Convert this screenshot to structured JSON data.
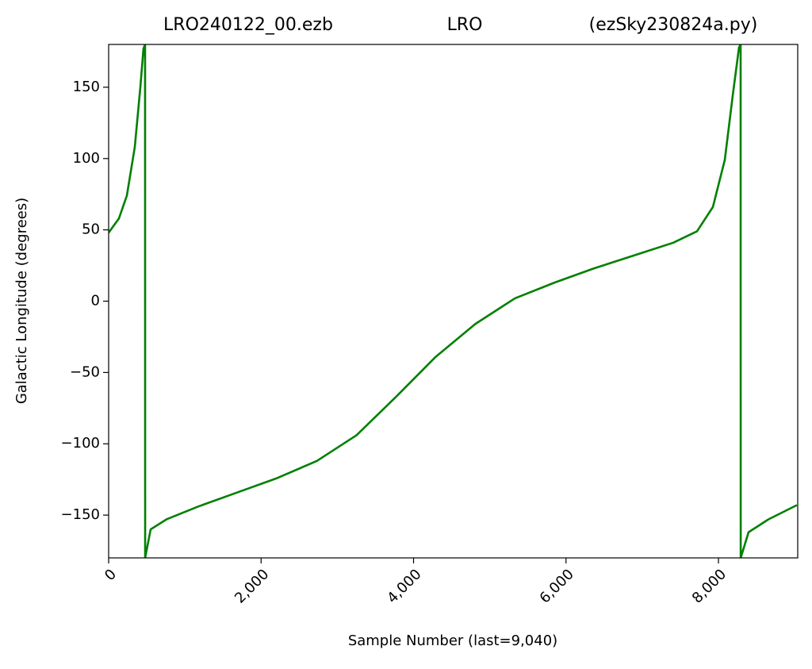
{
  "chart_data": {
    "type": "line",
    "title": [
      "LRO240122_00.ezb",
      "LRO",
      "(ezSky230824a.py)"
    ],
    "x_label": "Sample Number (last=9,040)",
    "y_label": "Galactic Longitude (degrees)",
    "xlim": [
      0,
      9040
    ],
    "ylim": [
      -180,
      180
    ],
    "xticks": [
      0,
      {
        "value": 2000,
        "label": "2,000"
      },
      {
        "value": 4000,
        "label": "4,000"
      },
      {
        "value": 6000,
        "label": "6,000"
      },
      {
        "value": 8000,
        "label": "8,000"
      }
    ],
    "yticks": [
      {
        "value": -150,
        "label": "−150"
      },
      {
        "value": -100,
        "label": "−100"
      },
      {
        "value": -50,
        "label": "−50"
      },
      0,
      50,
      100,
      150
    ],
    "grid": false,
    "series": [
      {
        "color": "#008000",
        "x": [
          0,
          135,
          239,
          343,
          416,
          457,
          478,
          479,
          551,
          758,
          1174,
          1694,
          2213,
          2732,
          3252,
          3771,
          4291,
          4810,
          5330,
          5849,
          6369,
          6888,
          7408,
          7719,
          7927,
          8083,
          8187,
          8270,
          8291,
          8292,
          8395,
          8655,
          9029
        ],
        "values": [
          48,
          58,
          74,
          108,
          150,
          177,
          180,
          -180,
          -160,
          -153,
          -144,
          -134,
          -124,
          -112,
          -94,
          -67,
          -39,
          -16,
          2,
          13,
          23,
          32,
          41,
          49,
          66,
          99,
          144,
          178,
          180,
          -180,
          -162,
          -153,
          -143
        ]
      }
    ]
  }
}
